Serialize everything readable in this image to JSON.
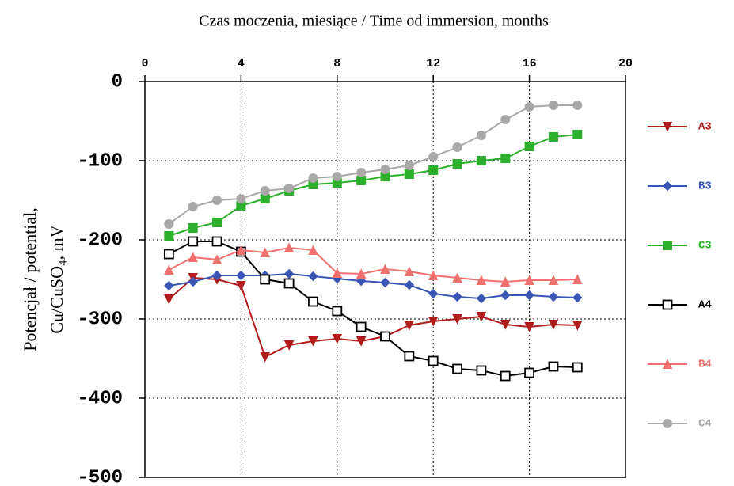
{
  "chart_data": {
    "type": "line",
    "title": "Czas moczenia, miesiące / Time od immersion, months",
    "y_label": [
      "Potencjał / potential,",
      "Cu/CuSO₄,  mV"
    ],
    "x": [
      1,
      2,
      3,
      4,
      5,
      6,
      7,
      8,
      9,
      10,
      11,
      12,
      13,
      14,
      15,
      16,
      17,
      18
    ],
    "xlim": [
      0,
      20
    ],
    "xticks": [
      0,
      4,
      8,
      12,
      16,
      20
    ],
    "ylim": [
      -500,
      0
    ],
    "yticks": [
      0,
      -100,
      -200,
      -300,
      -400,
      -500
    ],
    "grid": true,
    "legend": "right",
    "series": [
      {
        "name": "A3",
        "color": "#b01c1c",
        "marker": "triangle-down",
        "filled": true,
        "values": [
          -275,
          -248,
          -250,
          -258,
          -348,
          -333,
          -328,
          -325,
          -328,
          -322,
          -308,
          -303,
          -300,
          -297,
          -307,
          -310,
          -307,
          -308
        ]
      },
      {
        "name": "B3",
        "color": "#3a55b4",
        "marker": "diamond",
        "filled": true,
        "values": [
          -258,
          -253,
          -245,
          -245,
          -245,
          -243,
          -246,
          -249,
          -252,
          -254,
          -257,
          -268,
          -272,
          -274,
          -270,
          -270,
          -272,
          -273
        ]
      },
      {
        "name": "C3",
        "color": "#2db02d",
        "marker": "square",
        "filled": true,
        "values": [
          -195,
          -185,
          -178,
          -157,
          -148,
          -138,
          -130,
          -128,
          -125,
          -120,
          -117,
          -112,
          -104,
          -100,
          -97,
          -82,
          -70,
          -67
        ]
      },
      {
        "name": "A4",
        "color": "#000000",
        "marker": "square",
        "filled": false,
        "values": [
          -218,
          -202,
          -202,
          -215,
          -250,
          -255,
          -278,
          -290,
          -310,
          -322,
          -347,
          -353,
          -363,
          -365,
          -372,
          -368,
          -360,
          -361
        ]
      },
      {
        "name": "B4",
        "color": "#f07070",
        "marker": "triangle-up",
        "filled": true,
        "values": [
          -238,
          -222,
          -225,
          -213,
          -216,
          -210,
          -213,
          -242,
          -243,
          -237,
          -240,
          -245,
          -248,
          -251,
          -253,
          -251,
          -251,
          -250
        ]
      },
      {
        "name": "C4",
        "color": "#a8a8a8",
        "marker": "circle",
        "filled": true,
        "values": [
          -180,
          -158,
          -150,
          -148,
          -138,
          -135,
          -122,
          -120,
          -115,
          -111,
          -106,
          -95,
          -83,
          -68,
          -48,
          -32,
          -30,
          -30
        ]
      }
    ]
  }
}
